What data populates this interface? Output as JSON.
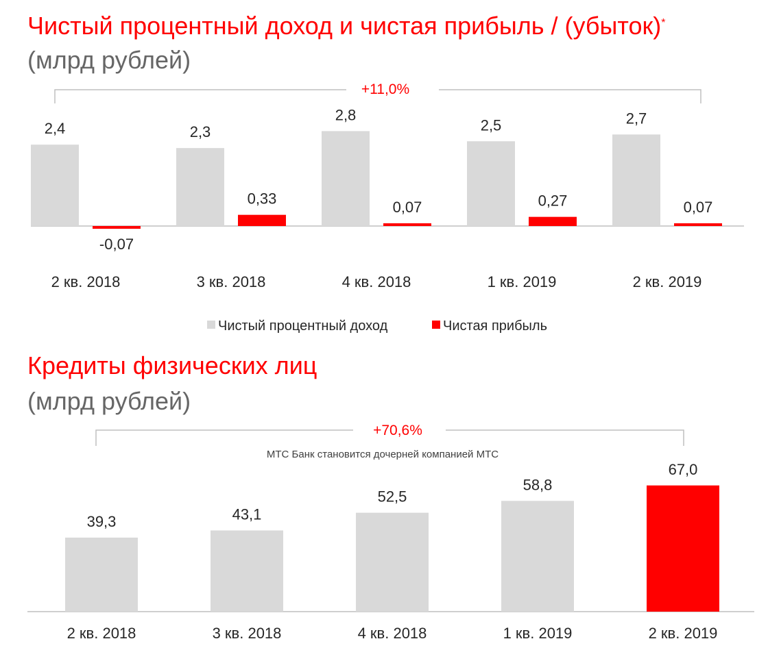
{
  "colors": {
    "primary": "#d9d9d9",
    "accent": "#ff0000",
    "axis": "#bfbfbf",
    "text": "#262626",
    "subtitle": "#666666"
  },
  "chart_data": [
    {
      "type": "bar",
      "title": "Чистый процентный доход и чистая прибыль / (убыток)",
      "title_marker": "*",
      "subtitle": "(млрд рублей)",
      "categories": [
        "2 кв. 2018",
        "3 кв. 2018",
        "4 кв. 2018",
        "1 кв. 2019",
        "2 кв. 2019"
      ],
      "series": [
        {
          "name": "Чистый процентный доход",
          "values": [
            2.4,
            2.3,
            2.8,
            2.5,
            2.7
          ],
          "value_labels": [
            "2,4",
            "2,3",
            "2,8",
            "2,5",
            "2,7"
          ],
          "color": "#d9d9d9"
        },
        {
          "name": "Чистая прибыль",
          "values": [
            -0.07,
            0.33,
            0.07,
            0.27,
            0.07
          ],
          "value_labels": [
            "-0,07",
            "0,33",
            "0,07",
            "0,27",
            "0,07"
          ],
          "color": "#ff0000"
        }
      ],
      "growth_annotation": "+11,0%",
      "legend": "bottom-center",
      "grid": false
    },
    {
      "type": "bar",
      "title": "Кредиты физических лиц",
      "subtitle": "(млрд рублей)",
      "categories": [
        "2 кв. 2018",
        "3 кв. 2018",
        "4 кв. 2018",
        "1 кв. 2019",
        "2 кв. 2019"
      ],
      "values": [
        39.3,
        43.1,
        52.5,
        58.8,
        67.0
      ],
      "value_labels": [
        "39,3",
        "43,1",
        "52,5",
        "58,8",
        "67,0"
      ],
      "highlight_index": 4,
      "growth_annotation": "+70,6%",
      "annotation": "МТС Банк становится дочерней компанией МТС",
      "grid": false
    }
  ]
}
